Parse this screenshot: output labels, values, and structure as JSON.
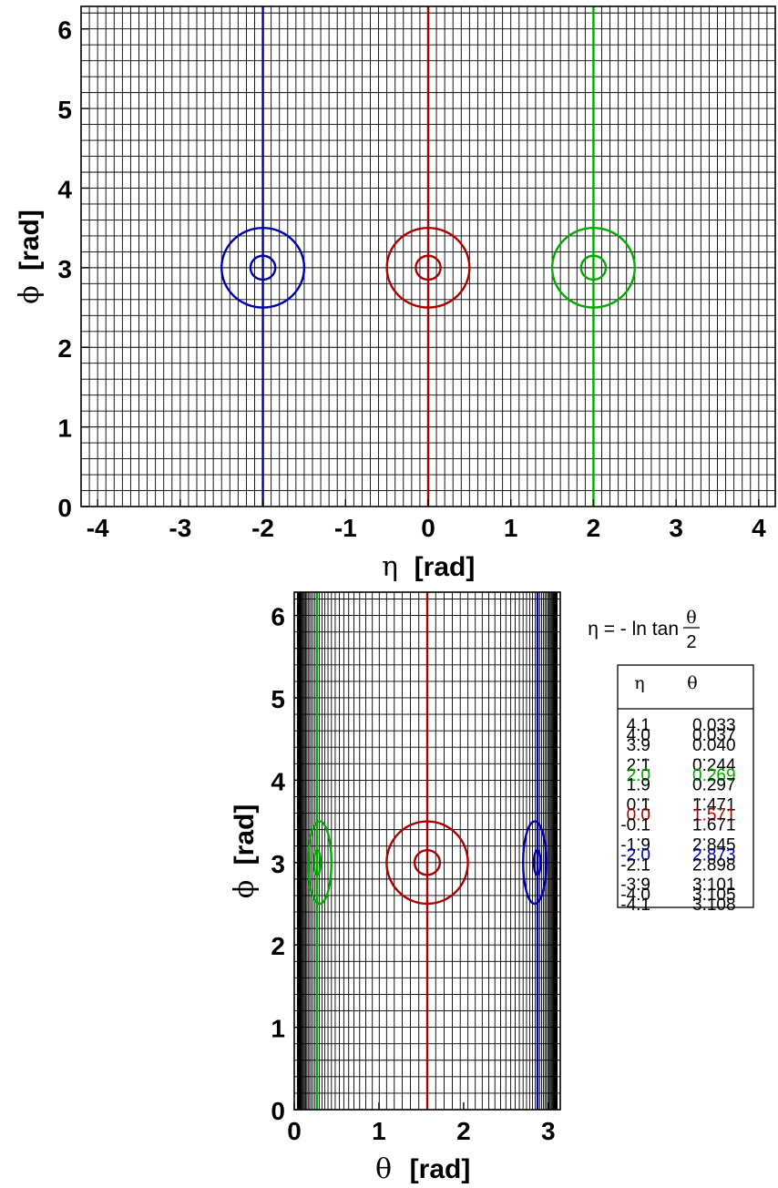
{
  "chart_data": [
    {
      "type": "line",
      "xlabel_symbol": "η",
      "xlabel": "[rad]",
      "ylabel_symbol": "ϕ",
      "ylabel": "[rad]",
      "xlim": [
        -4.2,
        4.2
      ],
      "ylim": [
        0,
        6.283
      ],
      "xticks": [
        "-4",
        "-3",
        "-2",
        "-1",
        "0",
        "1",
        "2",
        "3",
        "4"
      ],
      "yticks": [
        "0",
        "1",
        "2",
        "3",
        "4",
        "5",
        "6"
      ],
      "grid": true,
      "grid_spacing": {
        "x": 0.1,
        "y": 0.2
      },
      "series": [
        {
          "color": "#0000aa",
          "vline_x": -2.0,
          "center": [
            -2.0,
            3.0
          ],
          "radii": [
            0.15,
            0.5
          ]
        },
        {
          "color": "#aa0000",
          "vline_x": 0.0,
          "center": [
            0.0,
            3.0
          ],
          "radii": [
            0.15,
            0.5
          ]
        },
        {
          "color": "#00aa00",
          "vline_x": 2.0,
          "center": [
            2.0,
            3.0
          ],
          "radii": [
            0.15,
            0.5
          ]
        }
      ]
    },
    {
      "type": "line",
      "xlabel_symbol": "θ",
      "xlabel": "[rad]",
      "ylabel_symbol": "ϕ",
      "ylabel": "[rad]",
      "xlim": [
        0,
        3.1416
      ],
      "ylim": [
        0,
        6.283
      ],
      "xticks": [
        "0",
        "1",
        "2",
        "3"
      ],
      "yticks": [
        "0",
        "1",
        "2",
        "3",
        "4",
        "5",
        "6"
      ],
      "grid": true,
      "grid_spacing": {
        "eta": 0.1,
        "y": 0.2
      },
      "series": [
        {
          "color": "#00aa00",
          "eta": 2.0,
          "vline_x": 0.269,
          "center_phi": 3.0,
          "radii": [
            0.15,
            0.5
          ]
        },
        {
          "color": "#aa0000",
          "eta": 0.0,
          "vline_x": 1.571,
          "center_phi": 3.0,
          "radii": [
            0.15,
            0.5
          ]
        },
        {
          "color": "#0000aa",
          "eta": -2.0,
          "vline_x": 2.873,
          "center_phi": 3.0,
          "radii": [
            0.15,
            0.5
          ]
        }
      ]
    }
  ],
  "formula": {
    "lhs": "η = - ln tan",
    "numerator": "θ",
    "denominator": "2"
  },
  "table": {
    "headers": [
      "η",
      "θ"
    ],
    "rows": [
      {
        "eta": "4.1",
        "theta": "0.033",
        "color": "#000000"
      },
      {
        "eta": "4.0",
        "theta": "0.037",
        "color": "#000000"
      },
      {
        "eta": "3.9",
        "theta": "0.040",
        "color": "#000000"
      },
      {
        "eta": "...",
        "theta": "...",
        "color": "#000000"
      },
      {
        "eta": "2.1",
        "theta": "0.244",
        "color": "#000000"
      },
      {
        "eta": "2.0",
        "theta": "0.269",
        "color": "#00aa00"
      },
      {
        "eta": "1.9",
        "theta": "0.297",
        "color": "#000000"
      },
      {
        "eta": "...",
        "theta": "...",
        "color": "#000000"
      },
      {
        "eta": "0.1",
        "theta": "1.471",
        "color": "#000000"
      },
      {
        "eta": "0.0",
        "theta": "1.571",
        "color": "#aa0000"
      },
      {
        "eta": "-0.1",
        "theta": "1.671",
        "color": "#000000"
      },
      {
        "eta": "...",
        "theta": "...",
        "color": "#000000"
      },
      {
        "eta": "-1.9",
        "theta": "2.845",
        "color": "#000000"
      },
      {
        "eta": "-2.0",
        "theta": "2.873",
        "color": "#0000aa"
      },
      {
        "eta": "-2.1",
        "theta": "2.898",
        "color": "#000000"
      },
      {
        "eta": "...",
        "theta": "...",
        "color": "#000000"
      },
      {
        "eta": "-3.9",
        "theta": "3.101",
        "color": "#000000"
      },
      {
        "eta": "-4.0",
        "theta": "3.105",
        "color": "#000000"
      },
      {
        "eta": "-4.1",
        "theta": "3.108",
        "color": "#000000"
      }
    ]
  }
}
